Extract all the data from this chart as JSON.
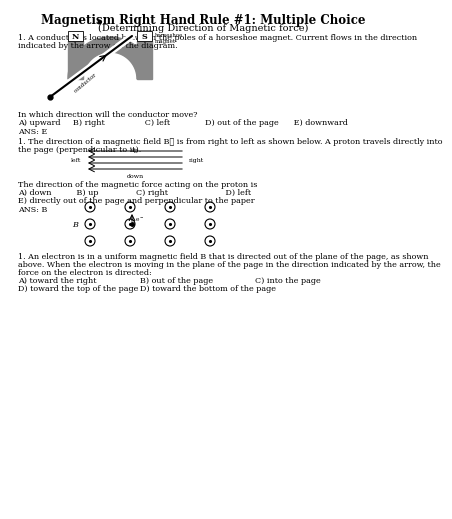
{
  "title": "Magnetism Right Hand Rule #1: Multiple Choice",
  "subtitle": "(Determining Direction of Magnetic force)",
  "bg_color": "#ffffff",
  "text_color": "#000000",
  "q1_line1": "1. A conductor is located between the poles of a horseshoe magnet. Current flows in the direction",
  "q1_line2": "indicated by the arrow on the diagram.",
  "q1_move": "In which direction will the conductor move?",
  "q1_choices": "A) upward     B) right                C) left              D) out of the page      E) downward",
  "q1_ans": "ANS: E",
  "q2_line1": "1. The direction of a magnetic field B⃗ is from right to left as shown below. A proton travels directly into",
  "q2_line2": "the page (perpendicular to it).",
  "q2_force_label": "The direction of the magnetic force acting on the proton is",
  "q2_choices_line1": "A) down          B) up               C) right                       D) left",
  "q2_choices_line2": "E) directly out of the page and perpendicular to the paper",
  "q2_ans": "ANS: B",
  "q3_line1": "1. An electron is in a uniform magnetic field B that is directed out of the plane of the page, as shown",
  "q3_line2": "above. When the electron is moving in the plane of the page in the direction indicated by the arrow, the",
  "q3_line3": "force on the electron is directed:",
  "q3_c1a": "A) toward the right",
  "q3_c1b": "B) out of the page",
  "q3_c1c": "C) into the page",
  "q3_c2a": "D) toward the top of the page",
  "q3_c2b": "D) toward the bottom of the page",
  "magnet_color": "#888888",
  "magnet_dark": "#666666"
}
